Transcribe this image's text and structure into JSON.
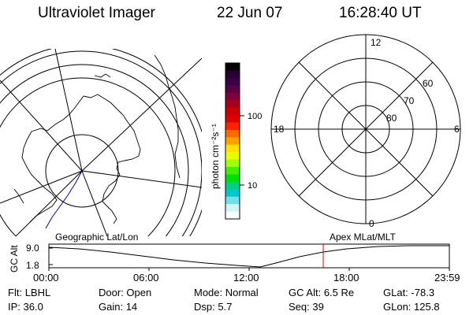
{
  "header": {
    "instrument": "Ultraviolet Imager",
    "date": "22 Jun 07",
    "time": "16:28:40 UT"
  },
  "colorbar": {
    "unit_label": "photon cm⁻²s⁻¹",
    "ticks": [
      "100",
      "10"
    ],
    "colors": [
      "#000000",
      "#2a0033",
      "#3b0048",
      "#5a0048",
      "#80003a",
      "#a8001c",
      "#cc0000",
      "#e00000",
      "#ff2000",
      "#ff6a00",
      "#ffa000",
      "#ffe000",
      "#e8ff00",
      "#a0ff00",
      "#40f000",
      "#00e000",
      "#00d080",
      "#00c8d0",
      "#70e0e8",
      "#d0f4f4",
      "#f8ffff"
    ]
  },
  "polar_plot": {
    "mlt_labels": [
      "12",
      "18",
      "6",
      "0"
    ],
    "lat_labels": [
      "60",
      "70",
      "80"
    ]
  },
  "altitude_plot": {
    "left_title": "Geographic Lat/Lon",
    "right_title": "Apex MLat/MLT",
    "y_axis_label": "GC Alt",
    "y_ticks": [
      "9.0",
      "1.8"
    ],
    "x_ticks": [
      "00:00",
      "06:00",
      "12:00",
      "18:00",
      "23:59"
    ],
    "marker_color": "#e00000"
  },
  "info": {
    "row1": [
      {
        "label": "Flt:",
        "value": "LBHL"
      },
      {
        "label": "Door:",
        "value": "Open"
      },
      {
        "label": "Mode:",
        "value": "Normal"
      },
      {
        "label": "GC Alt:",
        "value": "6.5 Re"
      },
      {
        "label": "GLat:",
        "value": "-78.3"
      }
    ],
    "row2": [
      {
        "label": "IP:",
        "value": "36.0"
      },
      {
        "label": "Gain:",
        "value": "14"
      },
      {
        "label": "Dsp:",
        "value": "5.7"
      },
      {
        "label": "Seq:",
        "value": "39"
      },
      {
        "label": "GLon:",
        "value": "125.8"
      }
    ]
  }
}
